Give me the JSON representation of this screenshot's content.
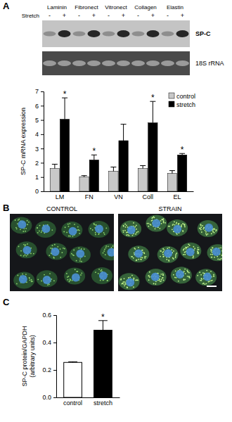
{
  "panel_labels": [
    "A",
    "B",
    "C"
  ],
  "blot": {
    "lanes": [
      "Laminin",
      "Fibronect",
      "Vitronect",
      "Collagen",
      "Elastin"
    ],
    "row_label": "Stretch",
    "conditions": [
      "-",
      "+"
    ],
    "bands": [
      "SP-C",
      "18S rRNA"
    ]
  },
  "micrographs": {
    "panels": [
      "CONTROL",
      "STRAIN"
    ]
  },
  "chart_data": [
    {
      "type": "bar",
      "categories": [
        "LM",
        "FN",
        "VN",
        "Coll",
        "EL"
      ],
      "y_label": "SP-C mRNA expression",
      "ylim": [
        0,
        7
      ],
      "yticks": [
        0,
        1,
        2,
        3,
        4,
        5,
        6,
        7
      ],
      "legend": "upper right",
      "series": [
        {
          "name": "control",
          "color": "#c8c8c8",
          "values": [
            1.6,
            1.0,
            1.4,
            1.6,
            1.25
          ],
          "errors": [
            0.3,
            0.1,
            0.3,
            0.2,
            0.2
          ]
        },
        {
          "name": "stretch",
          "color": "#000000",
          "values": [
            5.05,
            2.2,
            3.55,
            4.8,
            2.55
          ],
          "errors": [
            1.5,
            0.35,
            1.15,
            1.5,
            0.1
          ],
          "significance": [
            "*",
            "*",
            null,
            "*",
            "*"
          ]
        }
      ]
    },
    {
      "type": "bar",
      "categories": [
        "control",
        "stretch"
      ],
      "values": [
        0.255,
        0.49
      ],
      "errors": [
        0.005,
        0.07
      ],
      "colors": [
        "#ffffff",
        "#000000"
      ],
      "significance": [
        null,
        "*"
      ],
      "y_label": [
        "SP-C protein/GAPDH",
        "(arbitrary units)"
      ],
      "ylim": [
        0,
        0.6
      ],
      "yticks": [
        {
          "value": 0,
          "label": "0.0"
        },
        0.2,
        0.4,
        0.6
      ]
    }
  ]
}
